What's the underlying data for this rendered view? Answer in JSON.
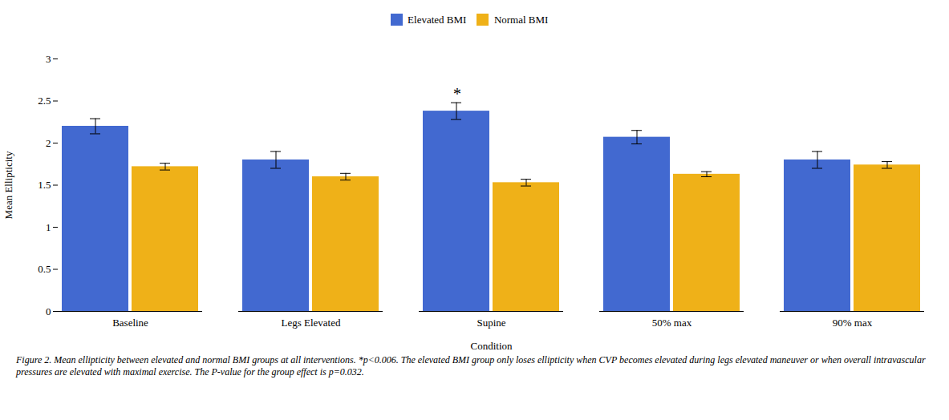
{
  "chart_data": {
    "type": "bar",
    "xlabel": "Condition",
    "ylabel": "Mean Ellipticity",
    "categories": [
      "Baseline",
      "Legs Elevated",
      "Supine",
      "50% max",
      "90% max"
    ],
    "series": [
      {
        "name": "Elevated BMI",
        "values": [
          2.2,
          1.8,
          2.38,
          2.07,
          1.8
        ],
        "errors": [
          0.09,
          0.1,
          0.1,
          0.08,
          0.1
        ]
      },
      {
        "name": "Normal BMI",
        "values": [
          1.72,
          1.6,
          1.53,
          1.63,
          1.74
        ],
        "errors": [
          0.04,
          0.04,
          0.04,
          0.03,
          0.04
        ]
      }
    ],
    "ylim": [
      0,
      3
    ],
    "yticks": [
      0,
      0.5,
      1,
      1.5,
      2,
      2.5,
      3
    ],
    "grid": false,
    "legend": "top",
    "annotations": [
      {
        "text": "*",
        "category": "Supine",
        "series": "Elevated BMI"
      }
    ],
    "caption": "Figure 2. Mean ellipticity between elevated and normal BMI groups at all interventions. *p<0.006. The elevated BMI group only loses ellipticity when CVP becomes elevated during legs elevated maneuver or when overall intravascular pressures are elevated with maximal exercise. The P-value for the group effect is p=0.032."
  }
}
